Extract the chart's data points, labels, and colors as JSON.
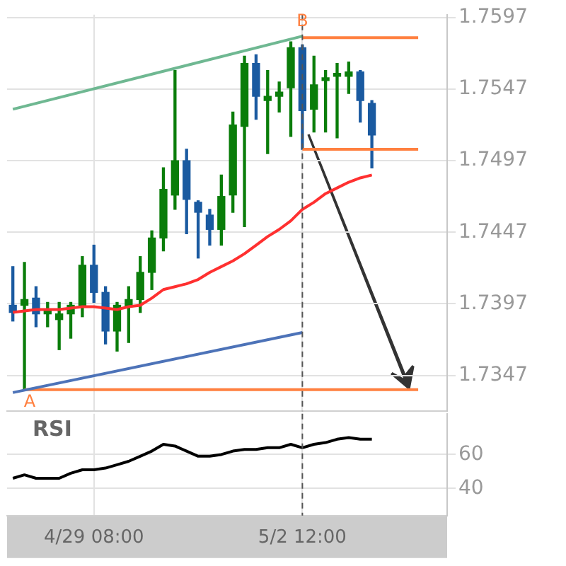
{
  "chart_data": [
    {
      "type": "candlestick",
      "categories": [
        null,
        null,
        null,
        null,
        null,
        null,
        null,
        "4/29 08:00",
        null,
        null,
        null,
        null,
        null,
        null,
        null,
        null,
        null,
        null,
        null,
        null,
        null,
        null,
        null,
        null,
        null,
        "5/2 12:00",
        null,
        null,
        null,
        null,
        null,
        null,
        null,
        null,
        null,
        null,
        null,
        null
      ],
      "ohlc": [
        [
          1.7396,
          1.7423,
          1.7385,
          1.7391
        ],
        [
          1.7396,
          1.7426,
          1.7337,
          1.74
        ],
        [
          1.7401,
          1.7409,
          1.7381,
          1.739
        ],
        [
          1.739,
          1.7398,
          1.7381,
          1.7393
        ],
        [
          1.7386,
          1.7398,
          1.7365,
          1.739
        ],
        [
          1.739,
          1.7398,
          1.7373,
          1.7396
        ],
        [
          1.7396,
          1.743,
          1.7388,
          1.7424
        ],
        [
          1.7424,
          1.7438,
          1.7398,
          1.7405
        ],
        [
          1.7405,
          1.7409,
          1.7369,
          1.7378
        ],
        [
          1.7378,
          1.7398,
          1.7364,
          1.7396
        ],
        [
          1.7395,
          1.7409,
          1.737,
          1.74
        ],
        [
          1.74,
          1.743,
          1.7391,
          1.7419
        ],
        [
          1.7419,
          1.7448,
          1.7407,
          1.7443
        ],
        [
          1.7443,
          1.7492,
          1.7434,
          1.7477
        ],
        [
          1.7473,
          1.756,
          1.7463,
          1.7497
        ],
        [
          1.7497,
          1.7505,
          1.7446,
          1.747
        ],
        [
          1.7468,
          1.7469,
          1.7429,
          1.7461
        ],
        [
          1.7459,
          1.7463,
          1.7438,
          1.7449
        ],
        [
          1.7449,
          1.7487,
          1.7438,
          1.7472
        ],
        [
          1.7473,
          1.7531,
          1.7461,
          1.7522
        ],
        [
          1.7521,
          1.757,
          1.7451,
          1.7565
        ],
        [
          1.7565,
          1.7571,
          1.7526,
          1.7542
        ],
        [
          1.7539,
          1.756,
          1.7502,
          1.7542
        ],
        [
          1.7542,
          1.7552,
          1.7531,
          1.7545
        ],
        [
          1.7548,
          1.758,
          1.7514,
          1.7576
        ],
        [
          1.7576,
          1.7578,
          1.7505,
          1.7532
        ],
        [
          1.7533,
          1.757,
          1.7517,
          1.755
        ],
        [
          1.7553,
          1.756,
          1.7517,
          1.7555
        ],
        [
          1.7556,
          1.7565,
          1.7513,
          1.7558
        ],
        [
          1.7556,
          1.7566,
          1.7544,
          1.7559
        ],
        [
          1.7559,
          1.756,
          1.7524,
          1.7539
        ],
        [
          1.7537,
          1.7539,
          1.7492,
          1.7515
        ],
        null,
        null,
        null,
        null,
        null,
        null
      ],
      "colors": [
        "#1a5aa0",
        "#0a7d0a",
        "#1a5aa0",
        "#0a7d0a",
        "#0a7d0a",
        "#0a7d0a",
        "#0a7d0a",
        "#1a5aa0",
        "#1a5aa0",
        "#0a7d0a",
        "#0a7d0a",
        "#0a7d0a",
        "#0a7d0a",
        "#0a7d0a",
        "#0a7d0a",
        "#1a5aa0",
        "#1a5aa0",
        "#1a5aa0",
        "#0a7d0a",
        "#0a7d0a",
        "#0a7d0a",
        "#1a5aa0",
        "#0a7d0a",
        "#0a7d0a",
        "#0a7d0a",
        "#1a5aa0",
        "#0a7d0a",
        "#0a7d0a",
        "#0a7d0a",
        "#0a7d0a",
        "#1a5aa0",
        "#1a5aa0",
        null,
        null,
        null,
        null,
        null,
        null
      ],
      "series": [
        {
          "type": "line",
          "color": "#ff3030",
          "values": [
            1.7391,
            1.7392,
            1.7393,
            1.7393,
            1.7393,
            1.7394,
            1.7395,
            1.7395,
            1.7394,
            1.7393,
            1.7395,
            1.7396,
            1.7401,
            1.7407,
            1.7409,
            1.7411,
            1.7414,
            1.7419,
            1.7423,
            1.7427,
            1.7432,
            1.7438,
            1.7444,
            1.7449,
            1.7455,
            1.7463,
            1.7468,
            1.7474,
            1.7478,
            1.7482,
            1.7485,
            1.7487,
            null,
            null,
            null,
            null,
            null,
            null
          ]
        },
        {
          "type": "line",
          "color": "#6fb892",
          "values": [
            1.7533,
            null,
            null,
            null,
            null,
            null,
            null,
            null,
            null,
            null,
            null,
            null,
            null,
            null,
            null,
            null,
            null,
            null,
            null,
            null,
            null,
            null,
            null,
            null,
            null,
            1.7584,
            null,
            null,
            null,
            null,
            null,
            null,
            null,
            null,
            null,
            null,
            null,
            null
          ]
        },
        {
          "type": "line",
          "color": "#4d73b8",
          "values": [
            1.7335,
            null,
            null,
            null,
            null,
            null,
            null,
            null,
            null,
            null,
            null,
            null,
            null,
            null,
            null,
            null,
            null,
            null,
            null,
            null,
            null,
            null,
            null,
            null,
            null,
            1.7377,
            null,
            null,
            null,
            null,
            null,
            null,
            null,
            null,
            null,
            null,
            null,
            null
          ]
        },
        {
          "type": "line",
          "color": "#ff8040",
          "values": [
            null,
            null,
            null,
            null,
            null,
            null,
            null,
            null,
            null,
            null,
            null,
            null,
            null,
            null,
            null,
            null,
            null,
            null,
            null,
            null,
            null,
            null,
            null,
            null,
            null,
            1.7583,
            null,
            null,
            null,
            null,
            null,
            null,
            null,
            null,
            null,
            1.7583,
            null,
            null
          ]
        },
        {
          "type": "line",
          "color": "#ff8040",
          "values": [
            null,
            null,
            null,
            null,
            null,
            null,
            null,
            null,
            null,
            null,
            null,
            null,
            null,
            null,
            null,
            null,
            null,
            null,
            null,
            null,
            null,
            null,
            null,
            null,
            null,
            1.7505,
            null,
            null,
            null,
            null,
            null,
            null,
            null,
            null,
            null,
            1.7505,
            null,
            null
          ]
        },
        {
          "type": "line",
          "color": "#ff8040",
          "values": [
            null,
            1.7337,
            null,
            null,
            null,
            null,
            null,
            null,
            null,
            null,
            null,
            null,
            null,
            null,
            null,
            null,
            null,
            null,
            null,
            null,
            null,
            null,
            null,
            null,
            null,
            null,
            null,
            null,
            null,
            null,
            null,
            null,
            null,
            null,
            null,
            1.7337,
            null,
            null
          ]
        }
      ],
      "ylim": [
        1.7322,
        1.7599
      ],
      "yticks": [
        1.7347,
        1.7397,
        1.7447,
        1.7497,
        1.7547,
        1.7597
      ],
      "ref_lines": [
        {
          "axis": "x",
          "value": "5/2 12:00",
          "color": "#555555",
          "line_style": "dashed"
        }
      ],
      "annotations": [
        "A",
        {
          "text": "B",
          "x": "5/2 12:00",
          "y": 1.7594
        }
      ],
      "grid": true,
      "legend": false,
      "tick_labels": "y"
    },
    {
      "type": "line",
      "title": "RSI",
      "categories": [
        null,
        null,
        null,
        null,
        null,
        null,
        null,
        "4/29 08:00",
        null,
        null,
        null,
        null,
        null,
        null,
        null,
        null,
        null,
        null,
        null,
        null,
        null,
        null,
        null,
        null,
        null,
        "5/2 12:00",
        null,
        null,
        null,
        null,
        null,
        null,
        null,
        null,
        null,
        null,
        null,
        null
      ],
      "series": [
        {
          "color": "#000000",
          "values": [
            46,
            48,
            46,
            46,
            46,
            49,
            51,
            51,
            52,
            54,
            56,
            59,
            62,
            66,
            65,
            62,
            59,
            59,
            60,
            62,
            63,
            63,
            64,
            64,
            66,
            64,
            66,
            67,
            69,
            70,
            69,
            69,
            null,
            null,
            null,
            null,
            null,
            null
          ]
        }
      ],
      "ylim": [
        24,
        84
      ],
      "yticks": [
        40,
        60
      ],
      "ref_lines": [
        {
          "axis": "x",
          "value": "5/2 12:00",
          "color": "#555555",
          "line_style": "dashed"
        }
      ],
      "grid": true,
      "legend": false
    }
  ]
}
